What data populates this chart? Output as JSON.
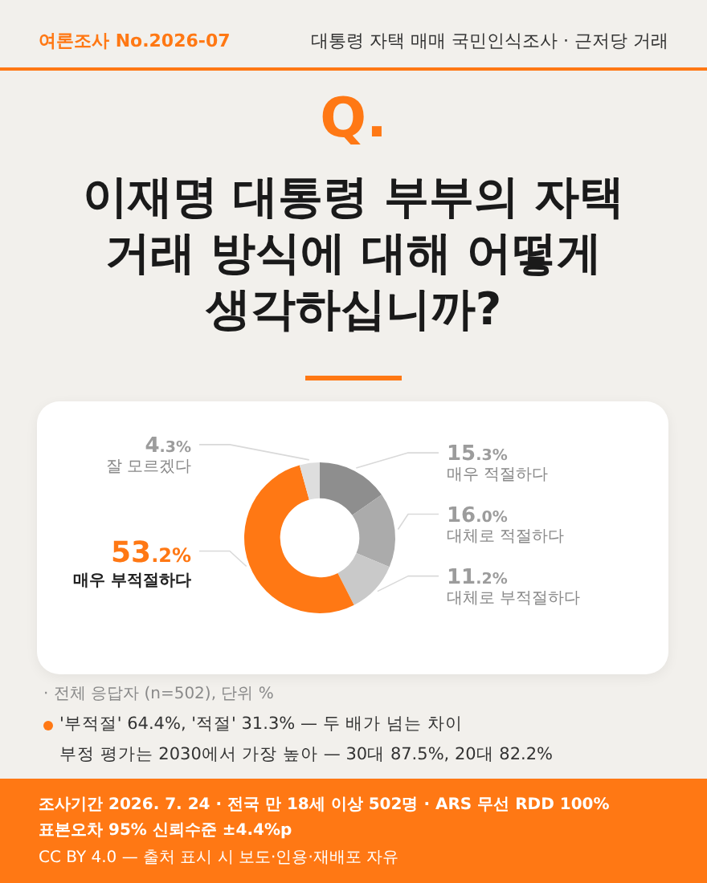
{
  "chart_data": {
    "type": "donut",
    "title": "이재명 대통령 부부의 자택 거래 방식에 대해 어떻게 생각하십니까?",
    "categories": [
      "매우 적절하다",
      "대체로 적절하다",
      "대체로 부적절하다",
      "매우 부적절하다",
      "잘 모르겠다"
    ],
    "values": [
      15.3,
      16.0,
      11.2,
      53.2,
      4.3
    ],
    "colors": [
      "#8e8e8e",
      "#ababab",
      "#c9c9c9",
      "#ff7814",
      "#dedede"
    ],
    "value_labels": [
      "15.3%",
      "16.0%",
      "11.2%",
      "53.2%",
      "4.3%"
    ],
    "annotations": [
      "여론조사 No.2026-07",
      "대통령 자택 매매 국민인식조사 · 근저당 거래",
      "Q.",
      "· 전체 응답자 (n=502), 단위 %",
      "'부적절' 64.4%, '적절' 31.3% — 두 배가 넘는 차이",
      "부정 평가는 2030에서 가장 높아 — 30대 87.5%, 20대 82.2%",
      "조사기간 2026. 7. 24 · 전국 만 18세 이상 502명 · ARS 무선 RDD 100%",
      "표본오차 95% 신뢰수준 ±4.4%p",
      "CC BY 4.0 — 출처 표시 시 보도·인용·재배포 자유"
    ]
  }
}
